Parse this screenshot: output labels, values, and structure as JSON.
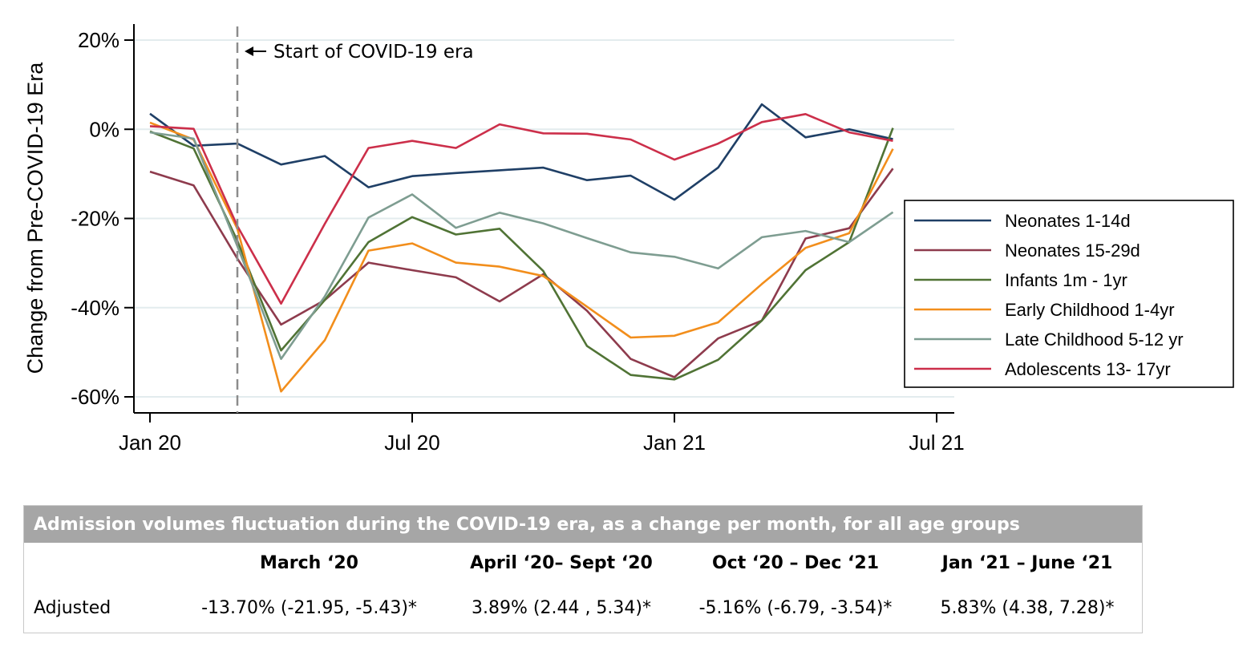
{
  "chart_data": {
    "type": "line",
    "ylabel": "Change from Pre-COVID-19 Era",
    "xlabel": "",
    "ylim": [
      -64,
      22
    ],
    "yticks": [
      20,
      0,
      -20,
      -40,
      -60
    ],
    "ytick_labels": [
      "20%",
      "0%",
      "-20%",
      "-40%",
      "-60%"
    ],
    "xlim": [
      0,
      18.3
    ],
    "xticks": [
      0,
      6,
      12,
      18
    ],
    "xtick_labels": [
      "Jan 20",
      "Jul 20",
      "Jan 21",
      "Jul 21"
    ],
    "grid": true,
    "legend_position": "right",
    "annotation": {
      "x": 2,
      "text": "Start of COVID-19 era"
    },
    "x": [
      0,
      1,
      2,
      3,
      4,
      5,
      6,
      7,
      8,
      9,
      10,
      11,
      12,
      13,
      14,
      15,
      16,
      17
    ],
    "series": [
      {
        "name": "Neonates 1-14d",
        "color": "#1f3f66",
        "values": [
          3.5,
          -3.7,
          -3.2,
          -7.9,
          -6,
          -13,
          -10.5,
          -9.8,
          -9.2,
          -8.6,
          -11.4,
          -10.4,
          -15.8,
          -8.6,
          5.6,
          -1.8,
          0,
          -2.2
        ]
      },
      {
        "name": "Neonates 15-29d",
        "color": "#8e3b4d",
        "values": [
          -9.5,
          -12.6,
          -29,
          -43.8,
          -38.3,
          -29.9,
          -31.6,
          -33.2,
          -38.6,
          -32.5,
          -40.7,
          -51.5,
          -55.6,
          -46.9,
          -42.9,
          -24.5,
          -22.2,
          -8.8
        ]
      },
      {
        "name": "Infants 1m - 1yr",
        "color": "#507335",
        "values": [
          -0.5,
          -4.3,
          -25,
          -49.6,
          -38.3,
          -25.3,
          -19.7,
          -23.6,
          -22.3,
          -31.8,
          -48.6,
          -55.1,
          -56.1,
          -51.7,
          -42.9,
          -31.6,
          -25.3,
          0.3
        ]
      },
      {
        "name": "Early Childhood 1-4yr",
        "color": "#f28e1c",
        "values": [
          1.5,
          -2.3,
          -22.3,
          -58.8,
          -47.3,
          -27.2,
          -25.6,
          -29.9,
          -30.8,
          -32.9,
          -39.8,
          -46.7,
          -46.3,
          -43.3,
          -34.7,
          -26.6,
          -23.3,
          -4.4
        ]
      },
      {
        "name": "Late Childhood 5-12 yr",
        "color": "#7e9d91",
        "values": [
          -0.7,
          -2.1,
          -26.2,
          -51.5,
          -37.5,
          -19.8,
          -14.6,
          -22.1,
          -18.7,
          -21.1,
          -24.4,
          -27.6,
          -28.6,
          -31.2,
          -24.2,
          -22.8,
          -25.3,
          -18.6
        ]
      },
      {
        "name": "Adolescents 13- 17yr",
        "color": "#cc2f4a",
        "values": [
          0.7,
          0.1,
          -21.7,
          -39.1,
          -21.2,
          -4.2,
          -2.6,
          -4.2,
          1.1,
          -0.9,
          -1,
          -2.3,
          -6.8,
          -3.2,
          1.6,
          3.4,
          -0.7,
          -2.6
        ]
      }
    ]
  },
  "table": {
    "caption": "Admission volumes fluctuation during the COVID-19 era, as a change per month, for all age groups",
    "headers": [
      "",
      "March ‘20",
      "April ‘20– Sept ‘20",
      "Oct ‘20 – Dec ‘21",
      "Jan ‘21 – June ‘21"
    ],
    "rows": [
      [
        "Adjusted",
        "-13.70% (-21.95, -5.43)*",
        "3.89% (2.44 , 5.34)*",
        "-5.16% (-6.79, -3.54)*",
        "5.83% (4.38, 7.28)*"
      ]
    ]
  }
}
